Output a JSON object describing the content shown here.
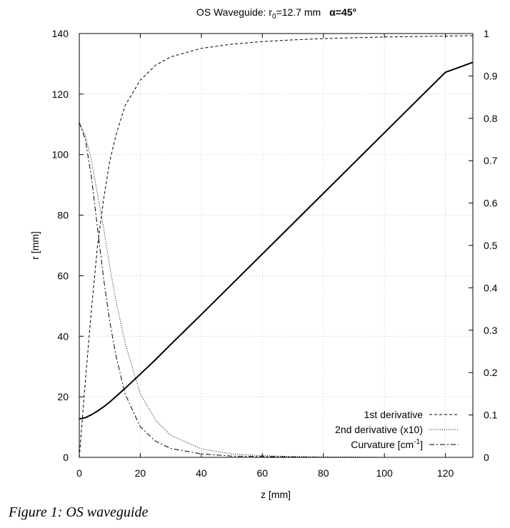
{
  "chart_data": {
    "type": "line",
    "title": "OS Waveguide: r",
    "title_subscript": "0",
    "title_rest": "=12.7 mm",
    "title_alpha": "α=45°",
    "xlabel": "z [mm]",
    "ylabel": "r [mm]",
    "xlim": [
      0,
      129
    ],
    "ylim": [
      0,
      140
    ],
    "y2lim": [
      0,
      1
    ],
    "xticks": [
      0,
      20,
      40,
      60,
      80,
      100,
      120
    ],
    "xtick_labels": [
      "0",
      "20",
      "40",
      "60",
      "80",
      "100",
      "120"
    ],
    "yticks": [
      0,
      20,
      40,
      60,
      80,
      100,
      120,
      140
    ],
    "ytick_labels": [
      "0",
      "20",
      "40",
      "60",
      "80",
      "100",
      "120",
      "140"
    ],
    "y2ticks": [
      0,
      0.1,
      0.2,
      0.3,
      0.4,
      0.5,
      0.6,
      0.7,
      0.8,
      0.9,
      1
    ],
    "y2tick_labels": [
      "0",
      "0.1",
      "0.2",
      "0.3",
      "0.4",
      "0.5",
      "0.6",
      "0.7",
      "0.8",
      "0.9",
      "1"
    ],
    "grid": true,
    "legend_position": "bottom-right",
    "x": [
      0,
      2,
      4,
      6,
      8,
      10,
      12,
      15,
      20,
      25,
      30,
      40,
      50,
      60,
      70,
      80,
      90,
      100,
      110,
      120,
      129
    ],
    "series": [
      {
        "name": "r",
        "axis": "left",
        "style": "solid",
        "values": [
          12.7,
          13.1,
          14.1,
          15.3,
          16.7,
          18.3,
          20.1,
          22.8,
          27.5,
          32.3,
          37.3,
          47.2,
          57.2,
          67.2,
          77.2,
          87.2,
          97.2,
          107.2,
          117.2,
          127.2,
          130.5
        ]
      },
      {
        "name": "1st derivative",
        "axis": "right",
        "style": "dashed",
        "values": [
          0,
          0.18,
          0.35,
          0.5,
          0.61,
          0.7,
          0.76,
          0.83,
          0.89,
          0.925,
          0.945,
          0.965,
          0.975,
          0.981,
          0.985,
          0.988,
          0.99,
          0.992,
          0.993,
          0.994,
          0.995
        ]
      },
      {
        "name": "2nd derivative (x10)",
        "axis": "right",
        "style": "dotted",
        "values": [
          0.79,
          0.76,
          0.7,
          0.62,
          0.54,
          0.45,
          0.37,
          0.27,
          0.15,
          0.088,
          0.052,
          0.02,
          0.008,
          0.004,
          0.002,
          0.001,
          0.001,
          0,
          0,
          0,
          0
        ]
      },
      {
        "name": "Curvature [cm^-1]",
        "axis": "right",
        "style": "dashdot",
        "values": [
          0.79,
          0.75,
          0.66,
          0.54,
          0.42,
          0.32,
          0.24,
          0.15,
          0.072,
          0.038,
          0.021,
          0.008,
          0.003,
          0.002,
          0.001,
          0,
          0,
          0,
          0,
          0,
          0
        ]
      }
    ],
    "legend": [
      {
        "label": "1st derivative",
        "style": "dashed"
      },
      {
        "label": "2nd derivative (x10)",
        "style": "dotted"
      },
      {
        "label": "Curvature [cm",
        "sup": "-1",
        "label_end": "]",
        "style": "dashdot"
      }
    ]
  },
  "caption": "Figure 1: OS waveguide"
}
